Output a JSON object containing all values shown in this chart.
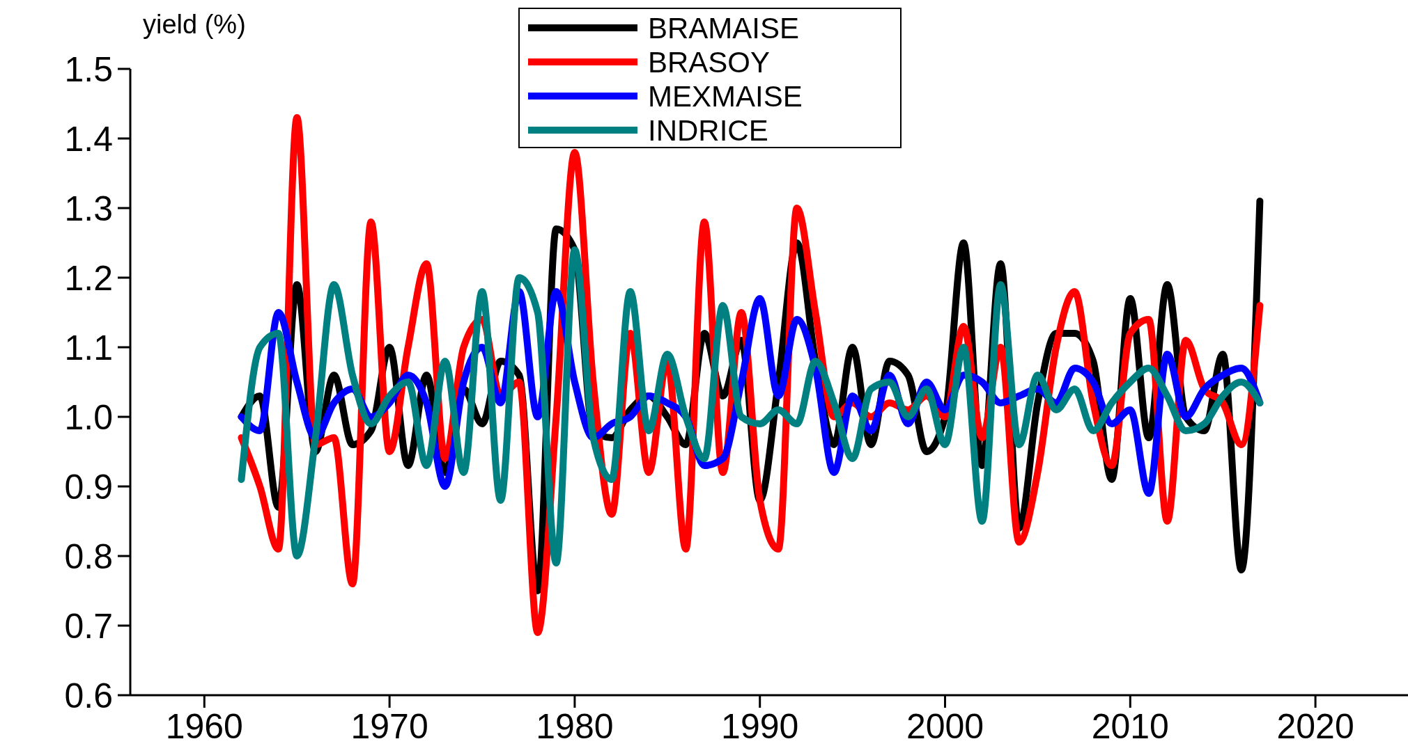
{
  "chart_data": {
    "type": "line",
    "ylabel": "yield (%)",
    "x": [
      1962,
      1963,
      1964,
      1965,
      1966,
      1967,
      1968,
      1969,
      1970,
      1971,
      1972,
      1973,
      1974,
      1975,
      1976,
      1977,
      1978,
      1979,
      1980,
      1981,
      1982,
      1983,
      1984,
      1985,
      1986,
      1987,
      1988,
      1989,
      1990,
      1991,
      1992,
      1993,
      1994,
      1995,
      1996,
      1997,
      1998,
      1999,
      2000,
      2001,
      2002,
      2003,
      2004,
      2005,
      2006,
      2007,
      2008,
      2009,
      2010,
      2011,
      2012,
      2013,
      2014,
      2015,
      2016,
      2017
    ],
    "series": [
      {
        "name": "BRAMAISE",
        "color": "#000000",
        "values": [
          1.0,
          1.03,
          0.87,
          1.19,
          0.95,
          1.06,
          0.96,
          0.98,
          1.1,
          0.93,
          1.06,
          0.92,
          1.04,
          0.99,
          1.08,
          1.06,
          0.75,
          1.27,
          1.24,
          0.98,
          0.97,
          1.01,
          1.03,
          1.0,
          0.96,
          1.12,
          1.03,
          1.11,
          0.88,
          1.05,
          1.25,
          1.08,
          0.96,
          1.1,
          0.96,
          1.08,
          1.06,
          0.95,
          1.0,
          1.25,
          0.93,
          1.22,
          0.84,
          1.02,
          1.12,
          1.12,
          1.08,
          0.91,
          1.17,
          0.97,
          1.19,
          1.0,
          0.98,
          1.09,
          0.78,
          1.31
        ]
      },
      {
        "name": "BRASOY",
        "color": "#ff0000",
        "values": [
          0.97,
          0.9,
          0.81,
          1.43,
          0.96,
          0.97,
          0.76,
          1.28,
          0.95,
          1.1,
          1.22,
          0.94,
          1.1,
          1.14,
          1.03,
          1.05,
          0.69,
          1.0,
          1.38,
          1.05,
          0.86,
          1.12,
          0.92,
          1.08,
          0.81,
          1.28,
          0.92,
          1.15,
          0.88,
          0.81,
          1.3,
          1.15,
          1.0,
          1.02,
          1.0,
          1.02,
          1.01,
          1.03,
          1.0,
          1.13,
          0.97,
          1.1,
          0.82,
          0.92,
          1.1,
          1.18,
          1.02,
          0.93,
          1.12,
          1.14,
          0.85,
          1.11,
          1.04,
          1.02,
          0.96,
          1.16
        ]
      },
      {
        "name": "MEXMAISE",
        "color": "#0000ff",
        "values": [
          1.0,
          0.98,
          1.15,
          1.05,
          0.97,
          1.02,
          1.04,
          1.0,
          1.02,
          1.06,
          1.02,
          0.9,
          1.05,
          1.1,
          1.02,
          1.18,
          1.0,
          1.18,
          1.05,
          0.97,
          0.99,
          1.0,
          1.03,
          1.02,
          1.0,
          0.93,
          0.94,
          1.05,
          1.17,
          1.03,
          1.14,
          1.07,
          0.92,
          1.03,
          0.98,
          1.06,
          0.99,
          1.05,
          1.01,
          1.06,
          1.05,
          1.02,
          1.03,
          1.04,
          1.02,
          1.07,
          1.05,
          0.99,
          1.01,
          0.89,
          1.09,
          1.0,
          1.04,
          1.06,
          1.07,
          1.02
        ]
      },
      {
        "name": "INDRICE",
        "color": "#008080",
        "values": [
          0.91,
          1.1,
          1.12,
          0.8,
          0.97,
          1.19,
          1.06,
          0.99,
          1.03,
          1.05,
          0.93,
          1.08,
          0.92,
          1.18,
          0.88,
          1.2,
          1.15,
          0.79,
          1.24,
          0.97,
          0.91,
          1.18,
          0.98,
          1.09,
          1.0,
          0.94,
          1.16,
          1.0,
          0.99,
          1.01,
          0.99,
          1.08,
          1.02,
          0.94,
          1.04,
          1.05,
          1.0,
          1.04,
          0.96,
          1.1,
          0.85,
          1.19,
          0.96,
          1.06,
          1.01,
          1.04,
          0.98,
          1.02,
          1.05,
          1.07,
          1.03,
          0.98,
          0.99,
          1.03,
          1.05,
          1.02
        ]
      }
    ],
    "xlim": [
      1956,
      2025
    ],
    "xticks": [
      1960,
      1970,
      1980,
      1990,
      2000,
      2010,
      2020
    ],
    "ylim": [
      0.6,
      1.5
    ],
    "yticks": [
      {
        "value": 0.6,
        "label": "0.6"
      },
      {
        "value": 0.7,
        "label": "0.7"
      },
      {
        "value": 0.8,
        "label": "0.8"
      },
      {
        "value": 0.9,
        "label": "0.9"
      },
      {
        "value": 1.0,
        "label": "1.0"
      },
      {
        "value": 1.1,
        "label": "1.1"
      },
      {
        "value": 1.2,
        "label": "1.2"
      },
      {
        "value": 1.3,
        "label": "1.3"
      },
      {
        "value": 1.4,
        "label": "1.4"
      },
      {
        "value": 1.5,
        "label": "1.5"
      }
    ],
    "legend": "top",
    "line_style": "solid",
    "marker": "none",
    "grid": false
  }
}
